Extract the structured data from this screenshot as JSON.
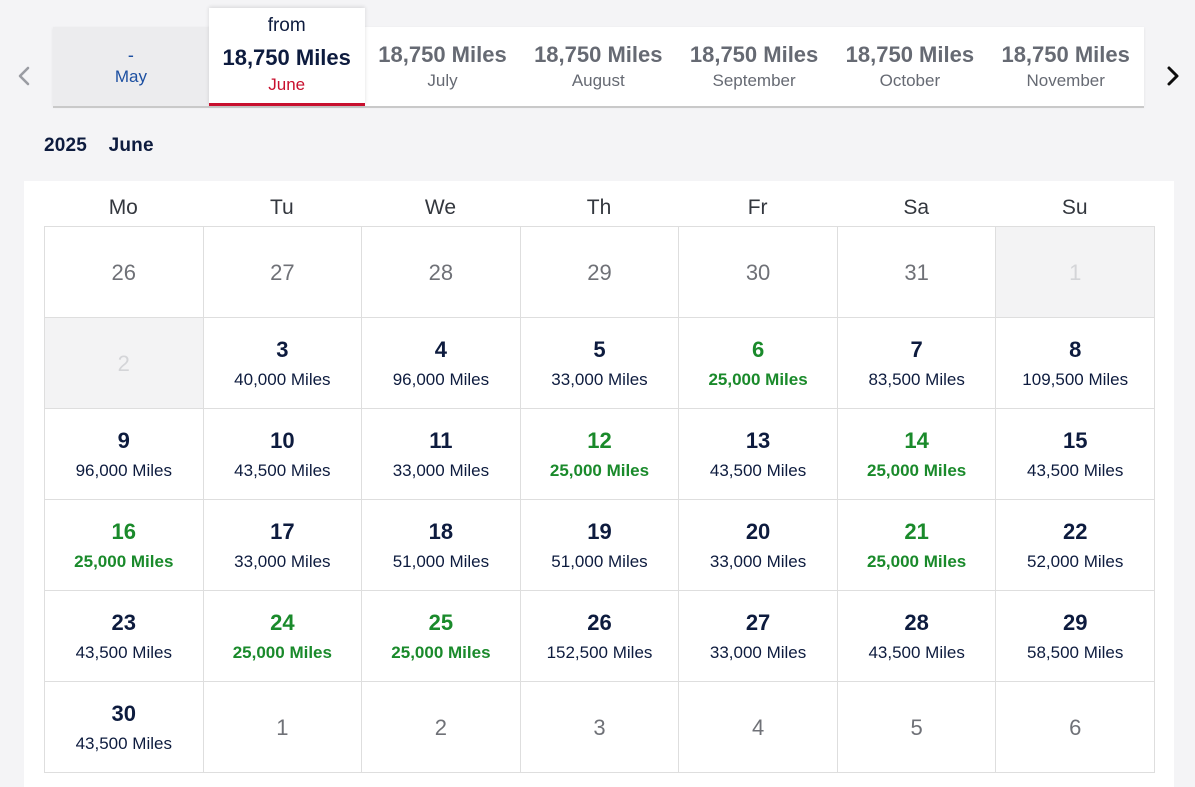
{
  "nav": {
    "prev_icon": "chevron-left-icon",
    "next_icon": "chevron-right-icon"
  },
  "months": [
    {
      "miles": "-",
      "label": "May",
      "state": "muted"
    },
    {
      "from": "from",
      "miles": "18,750 Miles",
      "label": "June",
      "state": "active"
    },
    {
      "miles": "18,750 Miles",
      "label": "July",
      "state": "normal"
    },
    {
      "miles": "18,750 Miles",
      "label": "August",
      "state": "normal"
    },
    {
      "miles": "18,750 Miles",
      "label": "September",
      "state": "normal"
    },
    {
      "miles": "18,750 Miles",
      "label": "October",
      "state": "normal"
    },
    {
      "miles": "18,750 Miles",
      "label": "November",
      "state": "normal"
    }
  ],
  "heading": {
    "year": "2025",
    "month": "June"
  },
  "weekdays": [
    "Mo",
    "Tu",
    "We",
    "Th",
    "Fr",
    "Sa",
    "Su"
  ],
  "colors": {
    "accent_red": "#c8102e",
    "low_price_green": "#1a8a2b",
    "navy": "#0d1b3e"
  },
  "days": [
    {
      "day": "26",
      "type": "other"
    },
    {
      "day": "27",
      "type": "other"
    },
    {
      "day": "28",
      "type": "other"
    },
    {
      "day": "29",
      "type": "other"
    },
    {
      "day": "30",
      "type": "other"
    },
    {
      "day": "31",
      "type": "other"
    },
    {
      "day": "1",
      "type": "disabled"
    },
    {
      "day": "2",
      "type": "disabled"
    },
    {
      "day": "3",
      "price": "40,000 Miles"
    },
    {
      "day": "4",
      "price": "96,000 Miles"
    },
    {
      "day": "5",
      "price": "33,000 Miles"
    },
    {
      "day": "6",
      "price": "25,000 Miles",
      "low": true
    },
    {
      "day": "7",
      "price": "83,500 Miles"
    },
    {
      "day": "8",
      "price": "109,500 Miles"
    },
    {
      "day": "9",
      "price": "96,000 Miles"
    },
    {
      "day": "10",
      "price": "43,500 Miles"
    },
    {
      "day": "11",
      "price": "33,000 Miles"
    },
    {
      "day": "12",
      "price": "25,000 Miles",
      "low": true
    },
    {
      "day": "13",
      "price": "43,500 Miles"
    },
    {
      "day": "14",
      "price": "25,000 Miles",
      "low": true
    },
    {
      "day": "15",
      "price": "43,500 Miles"
    },
    {
      "day": "16",
      "price": "25,000 Miles",
      "low": true
    },
    {
      "day": "17",
      "price": "33,000 Miles"
    },
    {
      "day": "18",
      "price": "51,000 Miles"
    },
    {
      "day": "19",
      "price": "51,000 Miles"
    },
    {
      "day": "20",
      "price": "33,000 Miles"
    },
    {
      "day": "21",
      "price": "25,000 Miles",
      "low": true
    },
    {
      "day": "22",
      "price": "52,000 Miles"
    },
    {
      "day": "23",
      "price": "43,500 Miles"
    },
    {
      "day": "24",
      "price": "25,000 Miles",
      "low": true
    },
    {
      "day": "25",
      "price": "25,000 Miles",
      "low": true
    },
    {
      "day": "26",
      "price": "152,500 Miles"
    },
    {
      "day": "27",
      "price": "33,000 Miles"
    },
    {
      "day": "28",
      "price": "43,500 Miles"
    },
    {
      "day": "29",
      "price": "58,500 Miles"
    },
    {
      "day": "30",
      "price": "43,500 Miles"
    },
    {
      "day": "1",
      "type": "other"
    },
    {
      "day": "2",
      "type": "other"
    },
    {
      "day": "3",
      "type": "other"
    },
    {
      "day": "4",
      "type": "other"
    },
    {
      "day": "5",
      "type": "other"
    },
    {
      "day": "6",
      "type": "other"
    }
  ]
}
